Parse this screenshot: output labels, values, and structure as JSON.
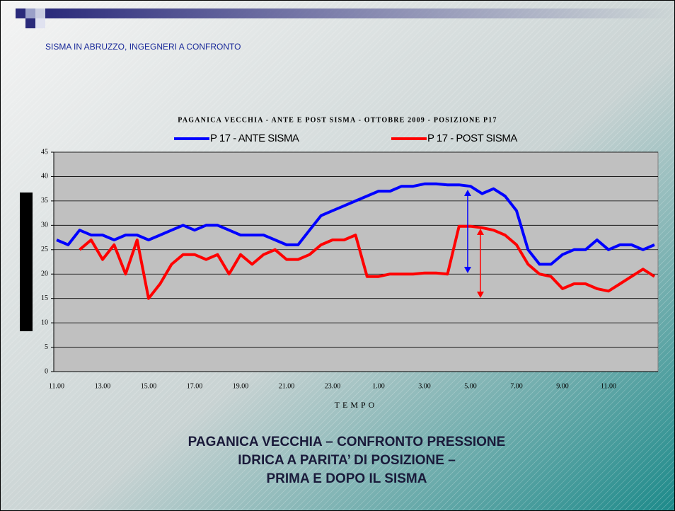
{
  "header": "SISMA IN ABRUZZO, INGEGNERI A CONFRONTO",
  "chart_data": {
    "type": "line",
    "title": "PAGANICA VECCHIA - ANTE E POST SISMA - OTTOBRE 2009 - POSIZIONE P17",
    "x_label": "TEMPO",
    "categories": [
      "11.00",
      null,
      null,
      null,
      "13.00",
      null,
      null,
      null,
      "15.00",
      null,
      null,
      null,
      "17.00",
      null,
      null,
      null,
      "19.00",
      null,
      null,
      null,
      "21.00",
      null,
      null,
      null,
      "23.00",
      null,
      null,
      null,
      "1.00",
      null,
      null,
      null,
      "3.00",
      null,
      null,
      null,
      "5.00",
      null,
      null,
      null,
      "7.00",
      null,
      null,
      null,
      "9.00",
      null,
      null,
      null,
      "11.00",
      null,
      null,
      null,
      null
    ],
    "series": [
      {
        "name": "P 17 - ANTE SISMA",
        "color": "#0000ff",
        "values": [
          27,
          26,
          29,
          28,
          28,
          27,
          28,
          28,
          27,
          28,
          29,
          30,
          29,
          30,
          30,
          29,
          28,
          28,
          28,
          27,
          26,
          26,
          29,
          32,
          33,
          34,
          35,
          36,
          37,
          37,
          38,
          38,
          38.5,
          38.5,
          38.3,
          38.3,
          38,
          36.5,
          37.5,
          36,
          33,
          25,
          22,
          22,
          24,
          25,
          25,
          27,
          25,
          26,
          26,
          25,
          26
        ]
      },
      {
        "name": "P 17 - POST SISMA",
        "color": "#ff0000",
        "values": [
          null,
          null,
          25,
          27,
          23,
          26,
          20,
          27,
          15,
          18,
          22,
          24,
          24,
          23,
          24,
          20,
          24,
          22,
          24,
          25,
          23,
          23,
          24,
          26,
          27,
          27,
          28,
          19.5,
          19.5,
          20,
          20,
          20,
          20.2,
          20.2,
          20,
          29.8,
          29.8,
          29.5,
          29,
          28,
          26,
          22,
          20,
          19.5,
          17,
          18,
          18,
          17,
          16.5,
          18,
          19.5,
          21,
          19.5
        ]
      }
    ],
    "ylim": [
      0,
      45
    ],
    "yticks": [
      0,
      5,
      10,
      15,
      20,
      25,
      30,
      35,
      40,
      45
    ],
    "grid": true
  },
  "caption": [
    "PAGANICA VECCHIA – CONFRONTO PRESSIONE",
    "IDRICA A PARITA’ DI POSIZIONE –",
    "PRIMA E DOPO IL SISMA"
  ]
}
